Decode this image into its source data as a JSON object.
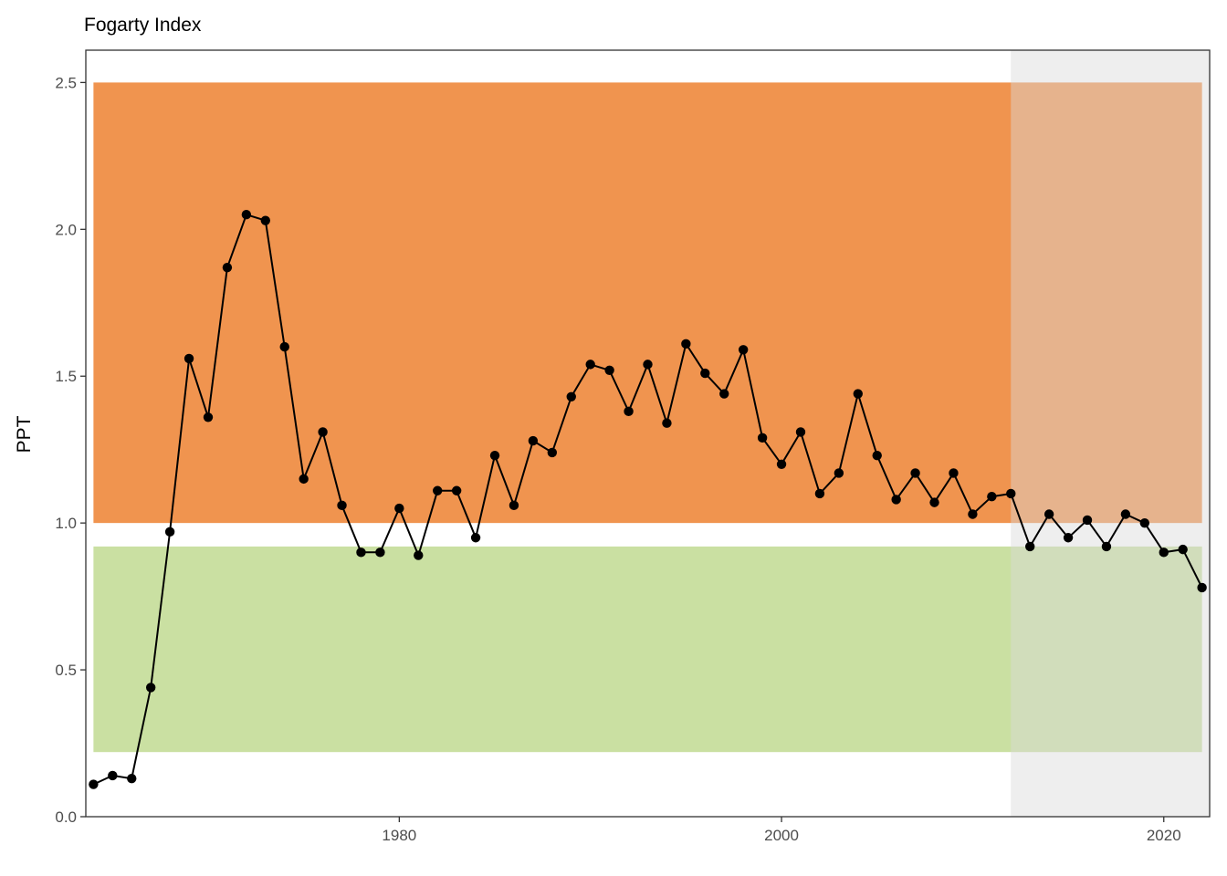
{
  "chart_data": {
    "type": "line",
    "title": "Fogarty Index",
    "xlabel": "",
    "ylabel": "PPT",
    "xlim": [
      1963.6,
      2022.4
    ],
    "ylim": [
      0,
      2.61
    ],
    "x_ticks": [
      1980,
      2000,
      2020
    ],
    "y_ticks": [
      0.0,
      0.5,
      1.0,
      1.5,
      2.0,
      2.5
    ],
    "y_tick_labels": [
      "0.0",
      "0.5",
      "1.0",
      "1.5",
      "2.0",
      "2.5"
    ],
    "grid": false,
    "bands": [
      {
        "y_from": 1.0,
        "y_to": 2.5,
        "x_from": 1964,
        "x_to": 2022,
        "color": "#f0944f"
      },
      {
        "y_from": 0.22,
        "y_to": 0.92,
        "x_from": 1964,
        "x_to": 2022,
        "color": "#cae0a2"
      }
    ],
    "shaded_region": {
      "x_from": 2012,
      "x_to": 2022.4,
      "color": "#d9d9d9",
      "opacity": 0.45
    },
    "series": [
      {
        "color": "#000000",
        "x": [
          1964,
          1965,
          1966,
          1967,
          1968,
          1969,
          1970,
          1971,
          1972,
          1973,
          1974,
          1975,
          1976,
          1977,
          1978,
          1979,
          1980,
          1981,
          1982,
          1983,
          1984,
          1985,
          1986,
          1987,
          1988,
          1989,
          1990,
          1991,
          1992,
          1993,
          1994,
          1995,
          1996,
          1997,
          1998,
          1999,
          2000,
          2001,
          2002,
          2003,
          2004,
          2005,
          2006,
          2007,
          2008,
          2009,
          2010,
          2011,
          2012,
          2013,
          2014,
          2015,
          2016,
          2017,
          2018,
          2019,
          2020,
          2021,
          2022
        ],
        "y": [
          0.11,
          0.14,
          0.13,
          0.44,
          0.97,
          1.56,
          1.36,
          1.87,
          2.05,
          2.03,
          1.6,
          1.15,
          1.31,
          1.06,
          0.9,
          0.9,
          1.05,
          0.89,
          1.11,
          1.11,
          0.95,
          1.23,
          1.06,
          1.28,
          1.24,
          1.43,
          1.54,
          1.52,
          1.38,
          1.54,
          1.34,
          1.61,
          1.51,
          1.44,
          1.59,
          1.29,
          1.2,
          1.31,
          1.1,
          1.17,
          1.44,
          1.23,
          1.08,
          1.17,
          1.07,
          1.17,
          1.03,
          1.09,
          1.1,
          0.92,
          1.03,
          0.95,
          1.01,
          0.92,
          1.03,
          1.0,
          0.9,
          0.91,
          0.78
        ]
      }
    ]
  }
}
